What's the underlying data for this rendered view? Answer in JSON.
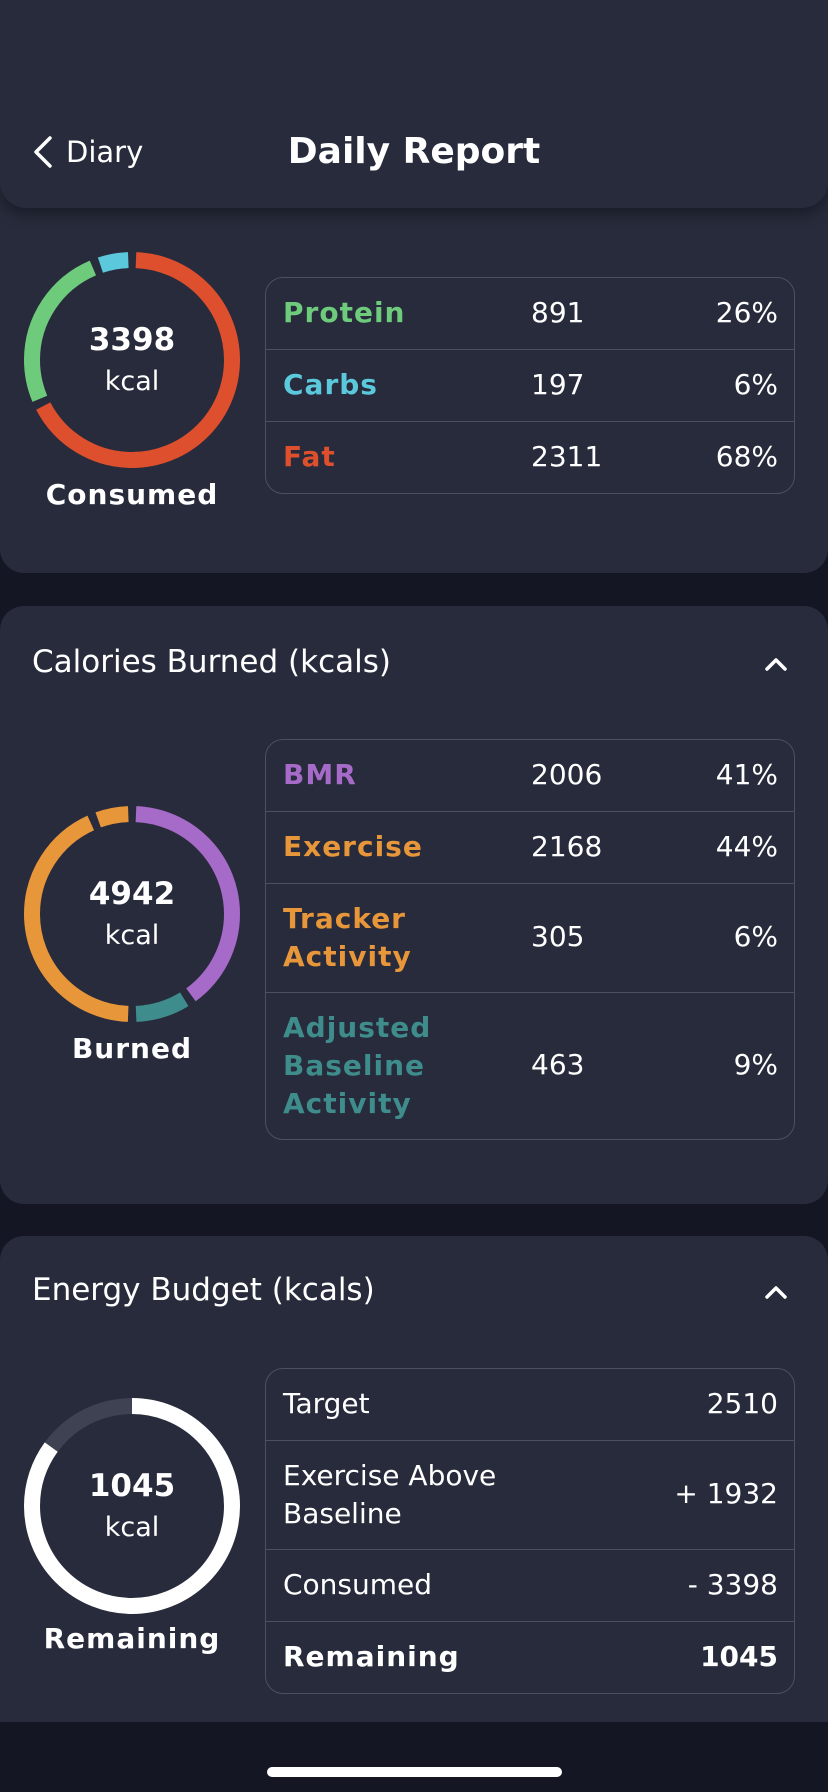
{
  "header": {
    "title": "Daily Report",
    "back_label": "Diary"
  },
  "consumed": {
    "value": "3398",
    "unit": "kcal",
    "caption": "Consumed",
    "rows": [
      {
        "label": "Protein",
        "value": "891",
        "pct": "26%",
        "color": "#6ecb7c"
      },
      {
        "label": "Carbs",
        "value": "197",
        "pct": "6%",
        "color": "#5cc8dc"
      },
      {
        "label": "Fat",
        "value": "2311",
        "pct": "68%",
        "color": "#dd4f2d"
      }
    ]
  },
  "burned": {
    "title": "Calories Burned (kcals)",
    "value": "4942",
    "unit": "kcal",
    "caption": "Burned",
    "rows": [
      {
        "label": "BMR",
        "value": "2006",
        "pct": "41%",
        "color": "#a66ac8"
      },
      {
        "label": "Exercise",
        "value": "2168",
        "pct": "44%",
        "color": "#e8963a"
      },
      {
        "label": "Tracker Activity",
        "value": "305",
        "pct": "6%",
        "color": "#e8963a"
      },
      {
        "label": "Adjusted Baseline Activity",
        "value": "463",
        "pct": "9%",
        "color": "#3e8d8c"
      }
    ]
  },
  "budget": {
    "title": "Energy Budget (kcals)",
    "value": "1045",
    "unit": "kcal",
    "caption": "Remaining",
    "remaining_fraction": 0.85,
    "rows": [
      {
        "label": "Target",
        "value": "2510"
      },
      {
        "label": "Exercise Above Baseline",
        "value": "+ 1932"
      },
      {
        "label": "Consumed",
        "value": "- 3398"
      },
      {
        "label": "Remaining",
        "value": "1045"
      }
    ]
  }
}
